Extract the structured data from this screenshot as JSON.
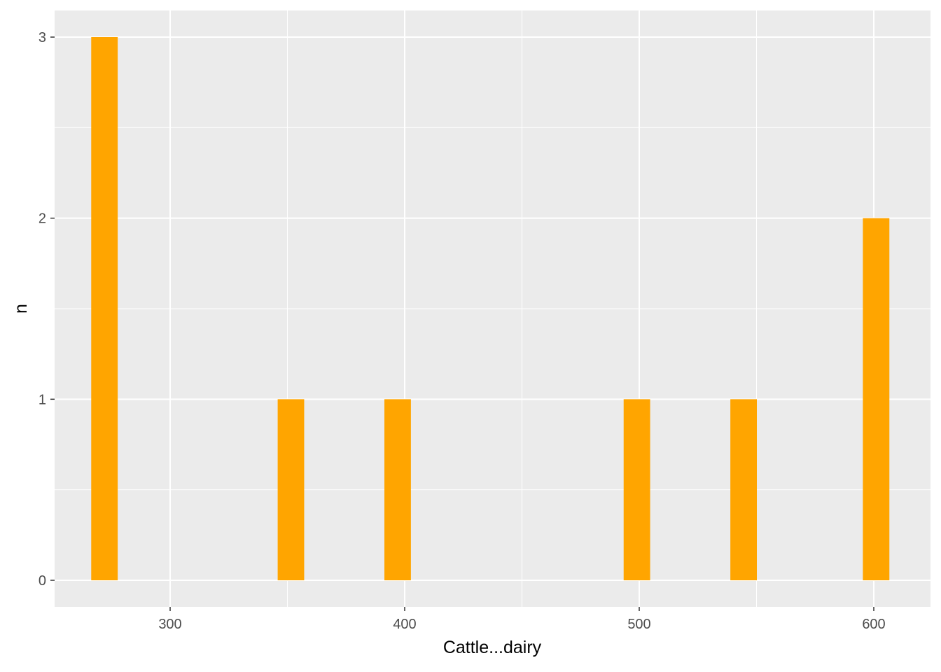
{
  "chart_data": {
    "type": "bar",
    "title": "",
    "xlabel": "Cattle...dairy",
    "ylabel": "n",
    "x_ticks": [
      300,
      400,
      500,
      600
    ],
    "y_ticks": [
      0,
      1,
      2,
      3
    ],
    "xlim": [
      251,
      1
    ],
    "ylim": [
      -0.15,
      3.15
    ],
    "bin_width": 11.3,
    "bars": [
      {
        "x": 272,
        "count": 3
      },
      {
        "x": 351.5,
        "count": 1
      },
      {
        "x": 397,
        "count": 1
      },
      {
        "x": 499,
        "count": 1
      },
      {
        "x": 544.5,
        "count": 1
      },
      {
        "x": 601,
        "count": 2
      }
    ],
    "grid": true,
    "legend": "none",
    "colors": {
      "bar": "#FFA500",
      "panel": "#EBEBEB",
      "grid": "#FFFFFF"
    }
  }
}
